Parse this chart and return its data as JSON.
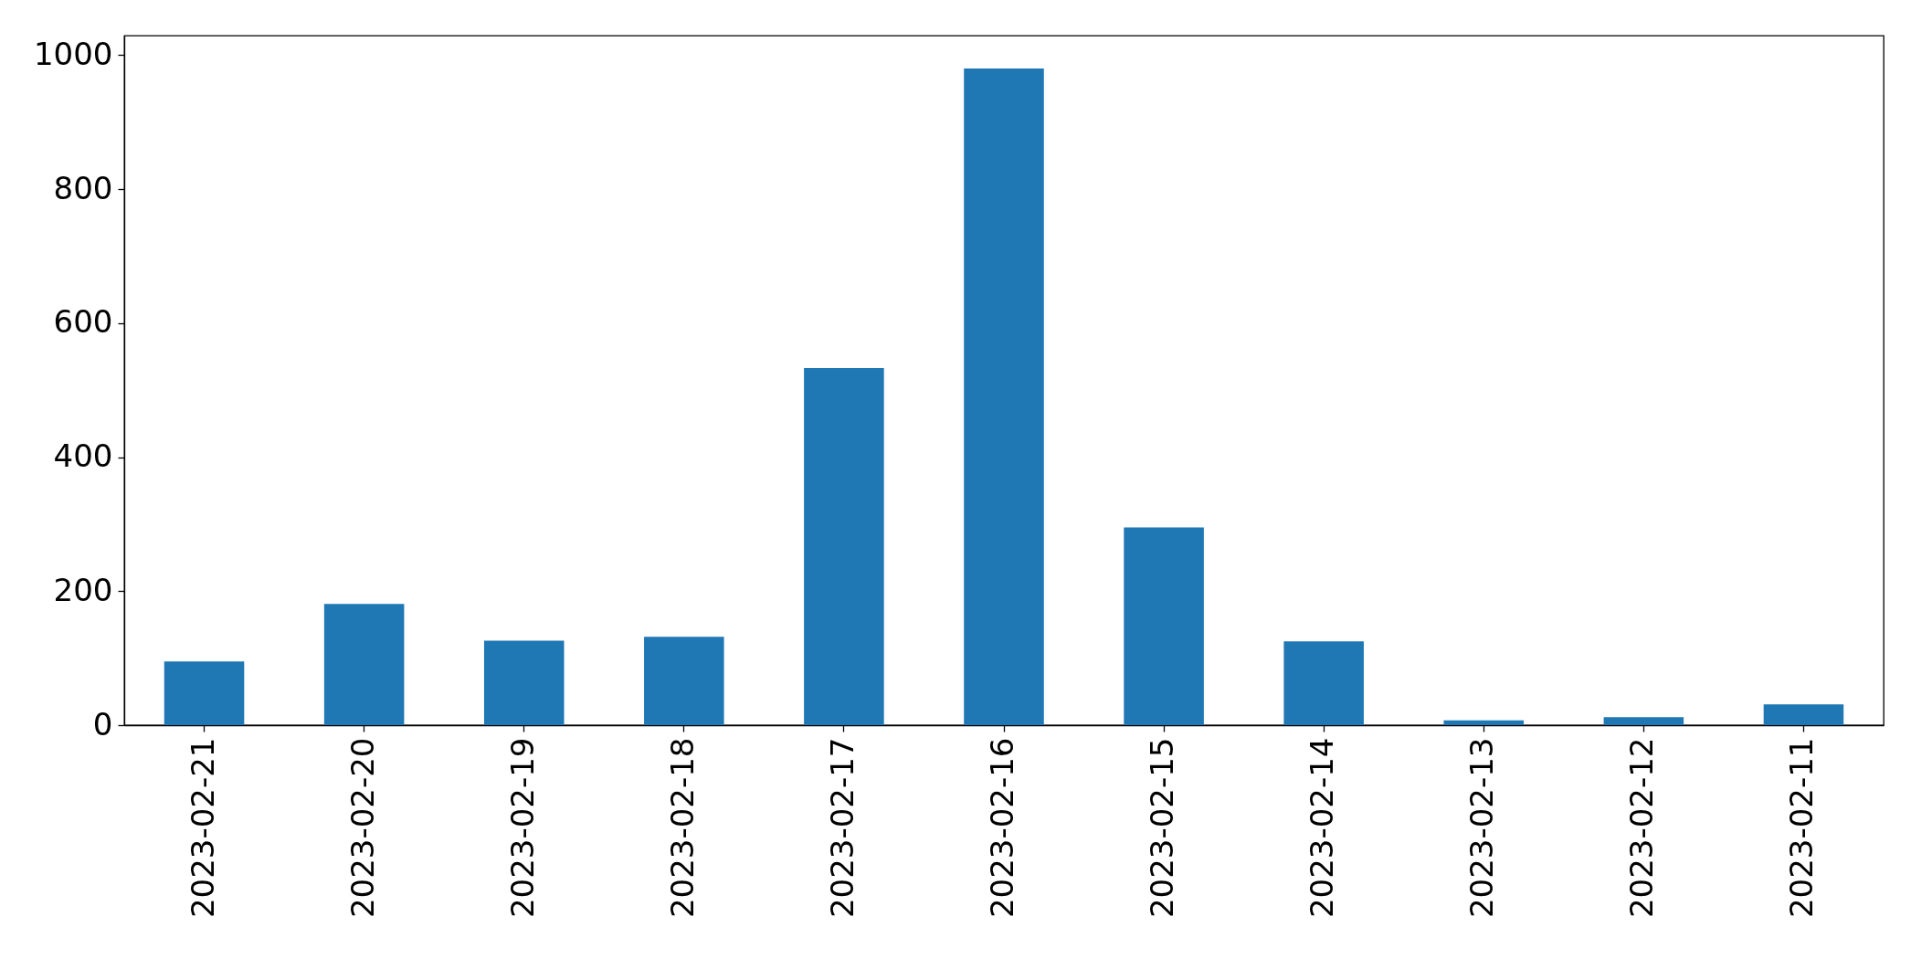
{
  "chart_data": {
    "type": "bar",
    "categories": [
      "2023-02-21",
      "2023-02-20",
      "2023-02-19",
      "2023-02-18",
      "2023-02-17",
      "2023-02-16",
      "2023-02-15",
      "2023-02-14",
      "2023-02-13",
      "2023-02-12",
      "2023-02-11"
    ],
    "values": [
      95,
      181,
      126,
      132,
      533,
      980,
      295,
      125,
      7,
      12,
      31
    ],
    "color": "#1f77b4",
    "ylim": [
      0,
      1029
    ],
    "yticks": [
      0,
      200,
      400,
      600,
      800,
      1000
    ]
  }
}
